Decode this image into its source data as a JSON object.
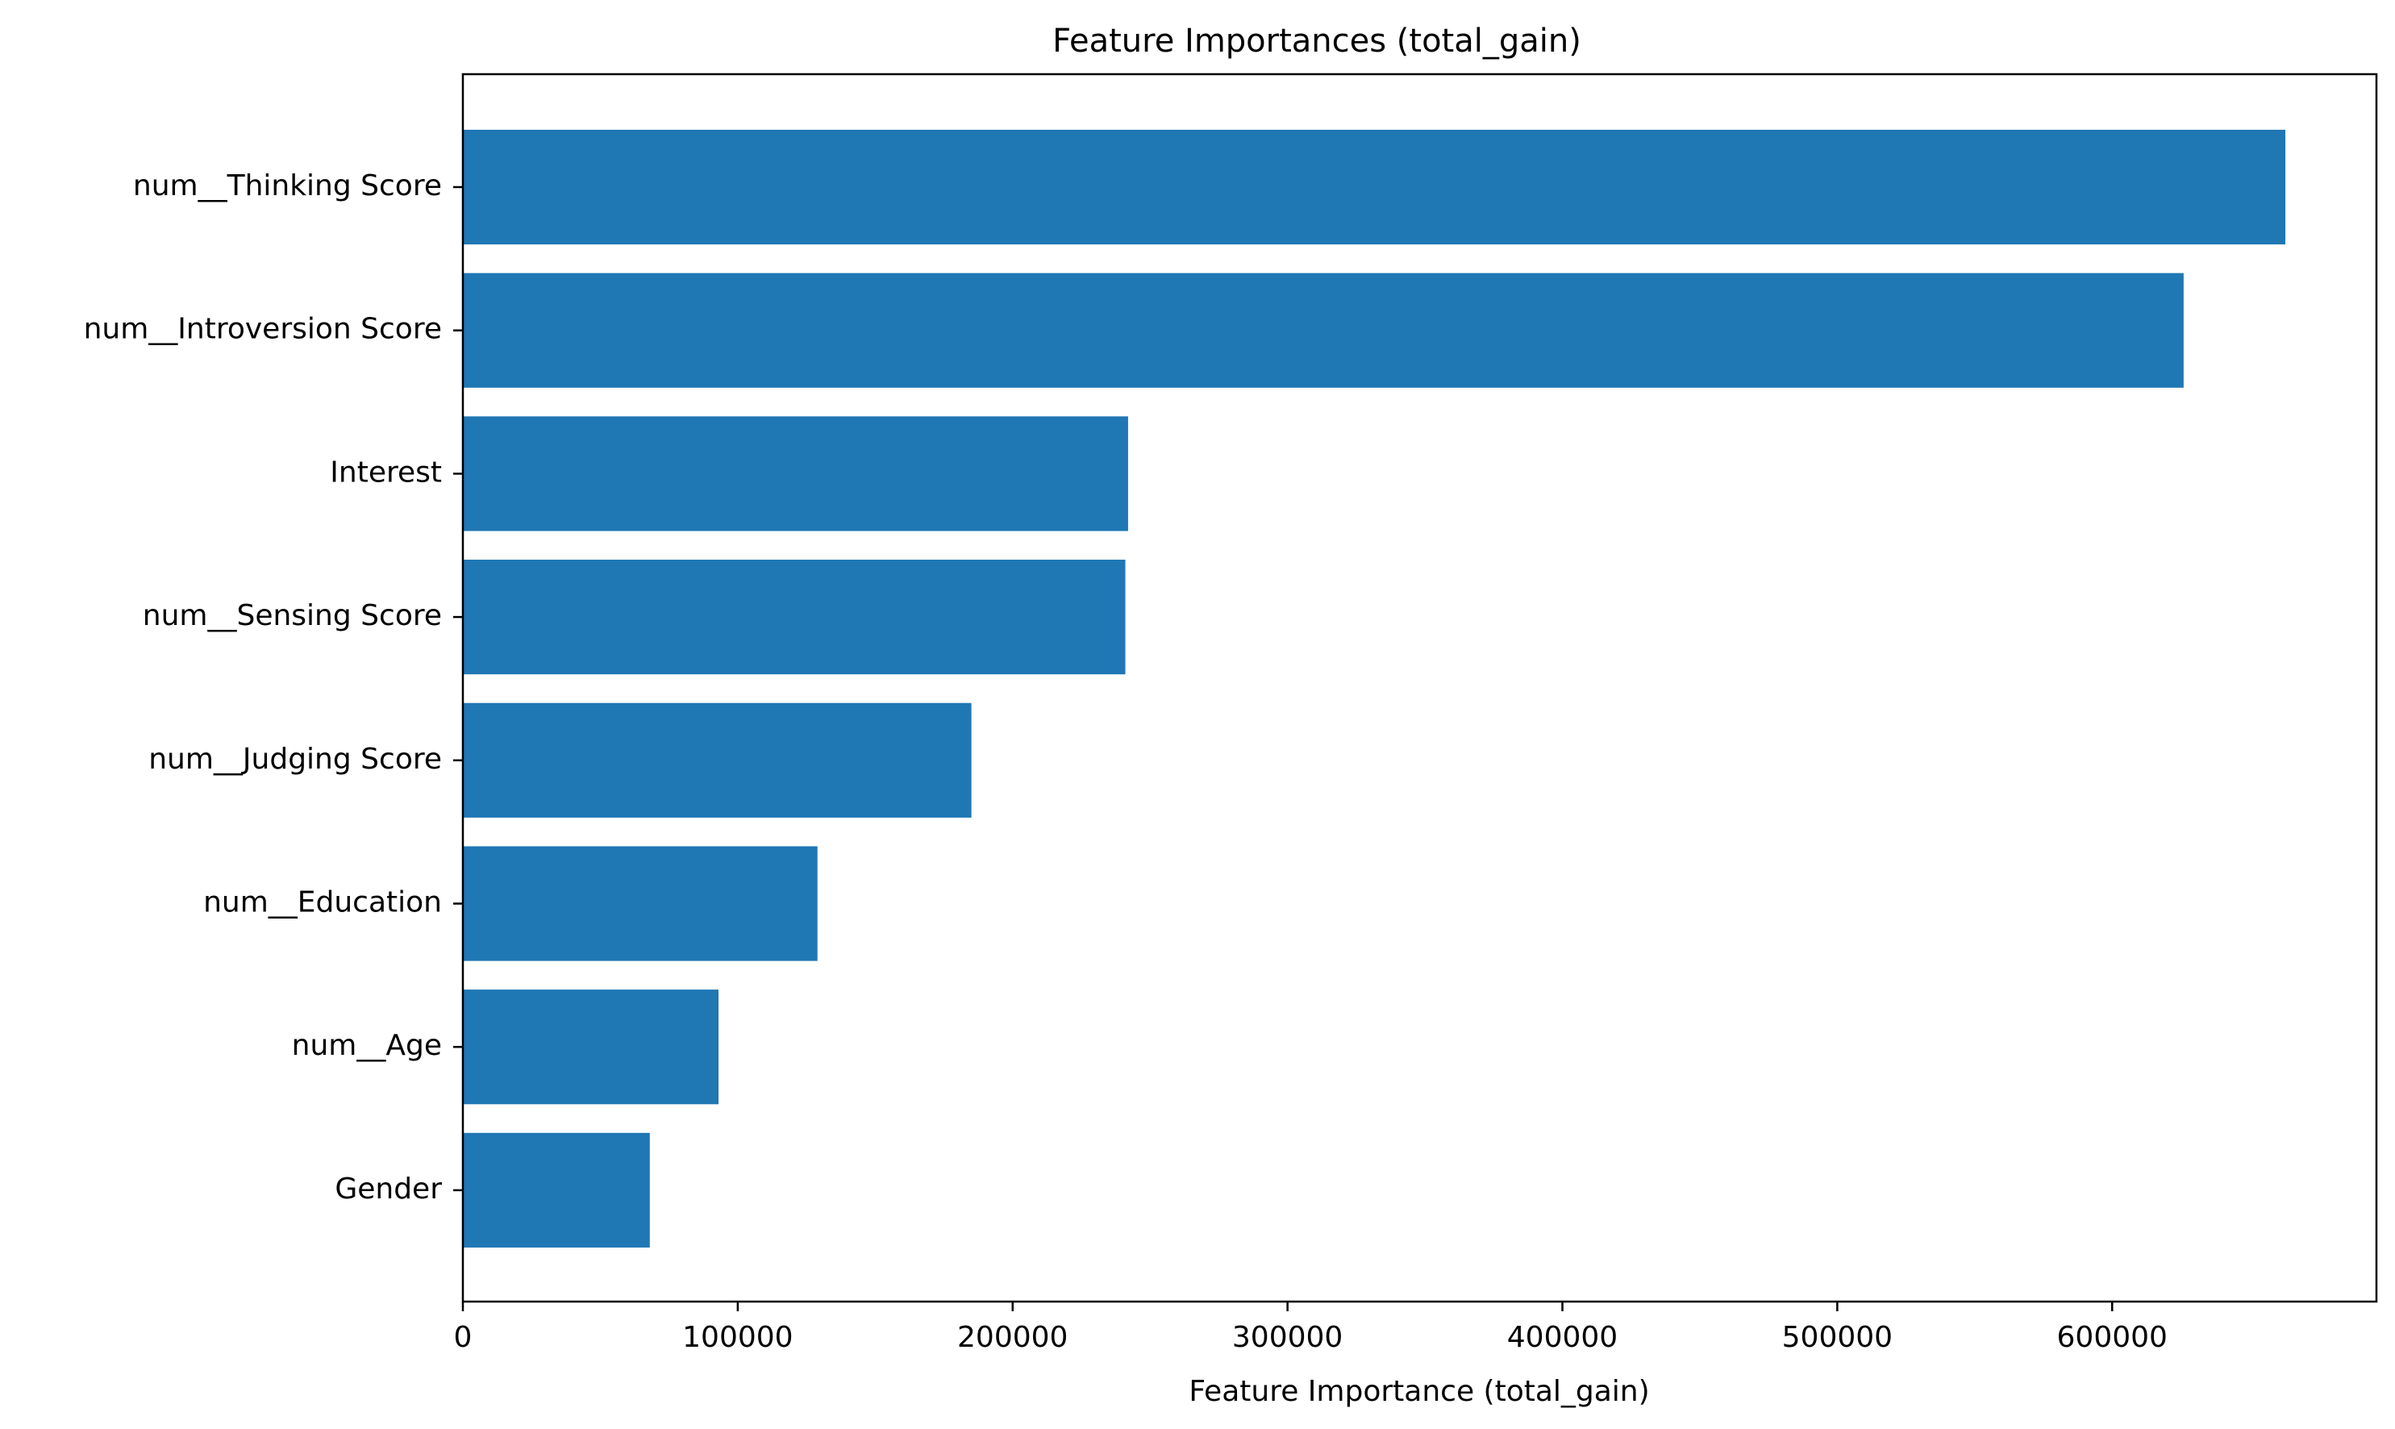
{
  "chart_data": {
    "type": "bar",
    "orientation": "horizontal",
    "title": "Feature Importances (total_gain)",
    "xlabel": "Feature Importance (total_gain)",
    "ylabel": "",
    "categories": [
      "num__Thinking Score",
      "num__Introversion Score",
      "Interest",
      "num__Sensing Score",
      "num__Judging Score",
      "num__Education",
      "num__Age",
      "Gender"
    ],
    "values": [
      663000,
      626000,
      242000,
      241000,
      185000,
      129000,
      93000,
      68000
    ],
    "xlim": [
      0,
      696150
    ],
    "xticks": [
      0,
      100000,
      200000,
      300000,
      400000,
      500000,
      600000
    ],
    "xtick_labels": [
      "0",
      "100000",
      "200000",
      "300000",
      "400000",
      "500000",
      "600000"
    ],
    "bar_color": "#1f77b4",
    "grid": false,
    "legend": "none"
  }
}
